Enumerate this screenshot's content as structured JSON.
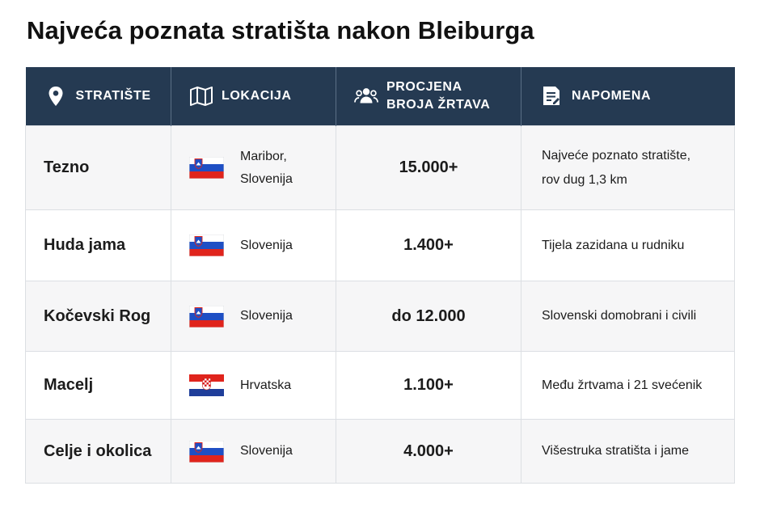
{
  "title": "Najveća poznata stratišta nakon Bleiburga",
  "table": {
    "headers": {
      "site": {
        "label": "STRATIŠTE",
        "icon": "location-pin-icon"
      },
      "location": {
        "label": "LOKACIJA",
        "icon": "map-icon"
      },
      "victims": {
        "label": "PROCJENA BROJA ŽRTAVA",
        "icon": "people-icon"
      },
      "note": {
        "label": "NAPOMENA",
        "icon": "note-icon"
      }
    },
    "rows": [
      {
        "site": "Tezno",
        "flag": "slovenia-flag",
        "location": "Maribor,\nSlovenija",
        "victims": "15.000+",
        "note": "Najveće poznato stratište,\nrov dug 1,3 km"
      },
      {
        "site": "Huda jama",
        "flag": "slovenia-flag",
        "location": "Slovenija",
        "victims": "1.400+",
        "note": "Tijela zazidana u rudniku"
      },
      {
        "site": "Kočevski Rog",
        "flag": "slovenia-flag",
        "location": "Slovenija",
        "victims": "do 12.000",
        "note": "Slovenski domobrani i civili"
      },
      {
        "site": "Macelj",
        "flag": "croatia-flag",
        "location": "Hrvatska",
        "victims": "1.100+",
        "note": "Među žrtvama i 21 svećenik"
      },
      {
        "site": "Celje i okolica",
        "flag": "slovenia-flag",
        "location": "Slovenija",
        "victims": "4.000+",
        "note": "Višestruka stratišta i jame"
      }
    ]
  },
  "colors": {
    "header_bg": "#253a52",
    "row_alt_bg": "#f6f6f7",
    "border": "#dcdfe3"
  }
}
